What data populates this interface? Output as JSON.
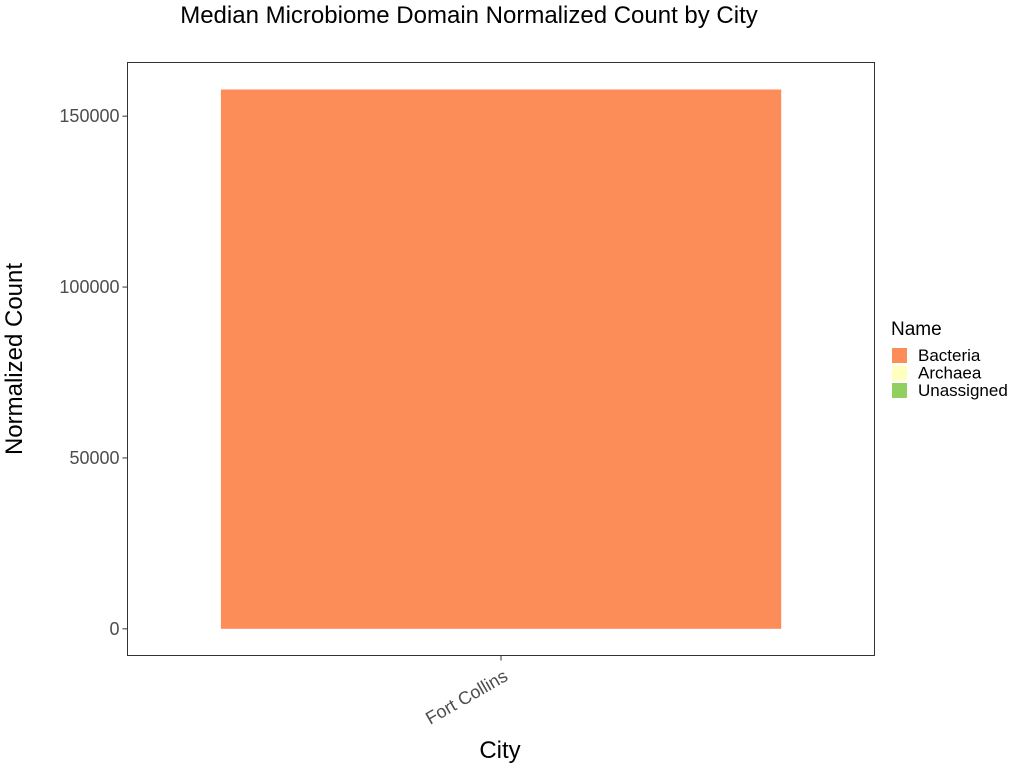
{
  "chart_data": {
    "type": "bar",
    "stacked": true,
    "title": "Median Microbiome Domain Normalized Count by City",
    "xlabel": "City",
    "ylabel": "Normalized Count",
    "categories": [
      "Fort Collins"
    ],
    "series": [
      {
        "name": "Bacteria",
        "values": [
          157800
        ],
        "color": "#fc8d59"
      },
      {
        "name": "Archaea",
        "values": [
          0
        ],
        "color": "#ffffbf"
      },
      {
        "name": "Unassigned",
        "values": [
          0
        ],
        "color": "#91cf60"
      }
    ],
    "ylim": [
      -7800,
      165700
    ],
    "yticks": [
      0,
      50000,
      100000,
      150000
    ],
    "ytick_labels": [
      "0",
      "50000",
      "100000",
      "150000"
    ],
    "grid": false,
    "legend": {
      "title": "Name",
      "placement": "right",
      "entries": [
        "Bacteria",
        "Archaea",
        "Unassigned"
      ]
    }
  }
}
